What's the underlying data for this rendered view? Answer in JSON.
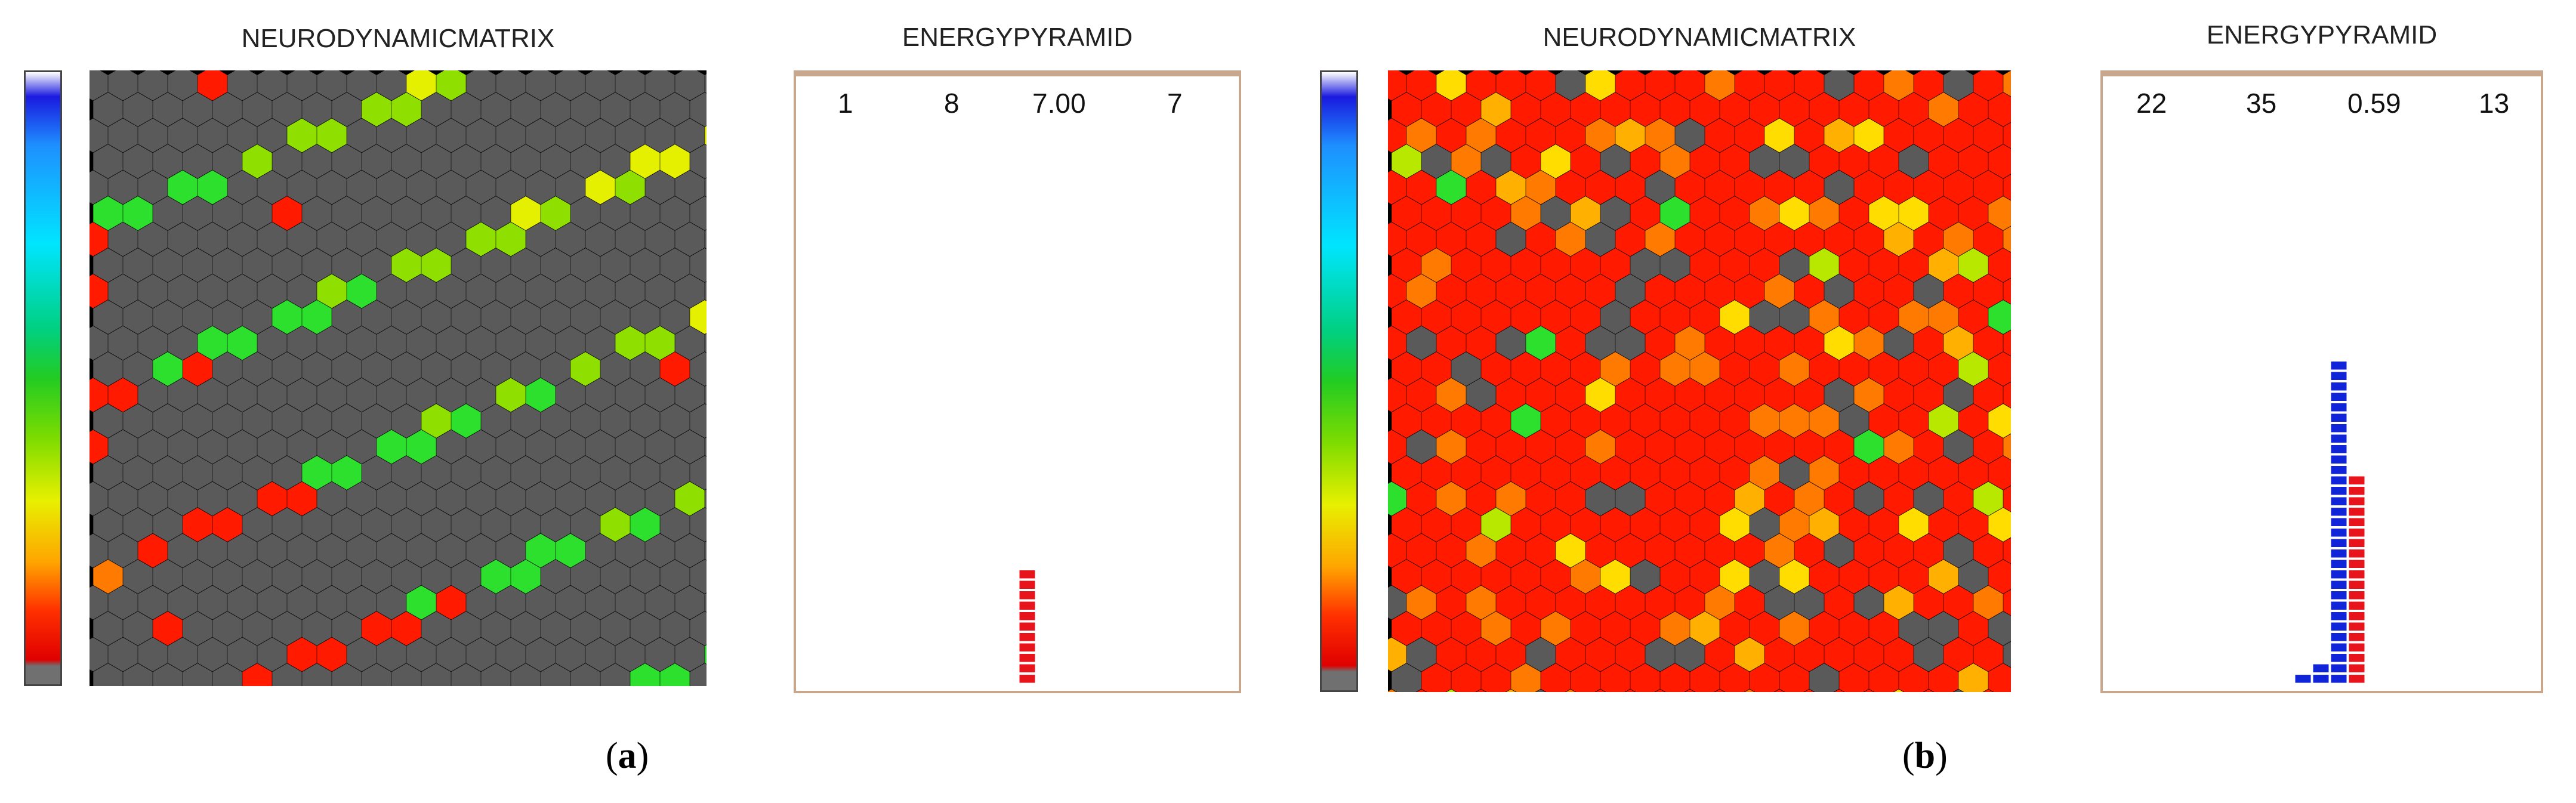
{
  "panels": [
    {
      "id": "a",
      "matrix_title": "NEURODYNAMICMATRIX",
      "pyramid_title": "ENERGYPYRAMID",
      "stats": [
        "1",
        "8",
        "7.00",
        "7"
      ],
      "caption_open": "(",
      "caption_letter": "a",
      "caption_close": ")",
      "pyramid_stacks": [
        {
          "color": "#e8141b",
          "count": 11
        }
      ]
    },
    {
      "id": "b",
      "matrix_title": "NEURODYNAMICMATRIX",
      "pyramid_title": "ENERGYPYRAMID",
      "stats": [
        "22",
        "35",
        "0.59",
        "13"
      ],
      "caption_open": "(",
      "caption_letter": "b",
      "caption_close": ")",
      "pyramid_stacks": [
        {
          "color": "#1024d8",
          "count": 1
        },
        {
          "color": "#1024d8",
          "count": 2
        },
        {
          "color": "#1024d8",
          "count": 31
        },
        {
          "color": "#e8141b",
          "count": 20
        }
      ]
    }
  ],
  "colors": {
    "inactive_cell": "#5a5a5a",
    "matrix_background": "#000000",
    "pyramid_border": "#c8a78f",
    "colorbar_stops": [
      "#ffffff",
      "#1a1adf",
      "#1e90ff",
      "#00e5ff",
      "#00d080",
      "#22cc22",
      "#7fdc00",
      "#e8f000",
      "#ffa500",
      "#ff3000",
      "#e00000",
      "#707070"
    ]
  }
}
